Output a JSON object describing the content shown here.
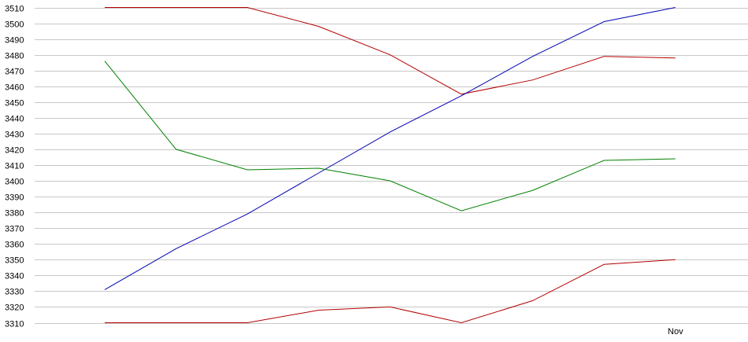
{
  "chart_data": {
    "type": "line",
    "title": "",
    "xlabel": "",
    "ylabel": "",
    "ylim": [
      3310,
      3510
    ],
    "y_ticks": [
      3310,
      3320,
      3330,
      3340,
      3350,
      3360,
      3370,
      3380,
      3390,
      3400,
      3410,
      3420,
      3430,
      3440,
      3450,
      3460,
      3470,
      3480,
      3490,
      3500,
      3510
    ],
    "grid": true,
    "legend": "none",
    "x_tick_labels": [
      {
        "index": 8,
        "label": "Nov"
      }
    ],
    "x": [
      0,
      1,
      2,
      3,
      4,
      5,
      6,
      7,
      8
    ],
    "series": [
      {
        "color": "#b30000",
        "values": [
          3510,
          3510,
          3510,
          3498,
          3480,
          3455,
          3464,
          3479,
          3478
        ]
      },
      {
        "color": "#0000b3",
        "values": [
          3331,
          3357,
          3379,
          3405,
          3431,
          3454,
          3479,
          3501,
          3510
        ]
      },
      {
        "color": "#008000",
        "values": [
          3476,
          3420,
          3407,
          3408,
          3400,
          3381,
          3394,
          3413,
          3414
        ]
      },
      {
        "color": "#b30000",
        "values": [
          3310,
          3310,
          3310,
          3318,
          3320,
          3310,
          3324,
          3347,
          3350
        ]
      }
    ]
  }
}
